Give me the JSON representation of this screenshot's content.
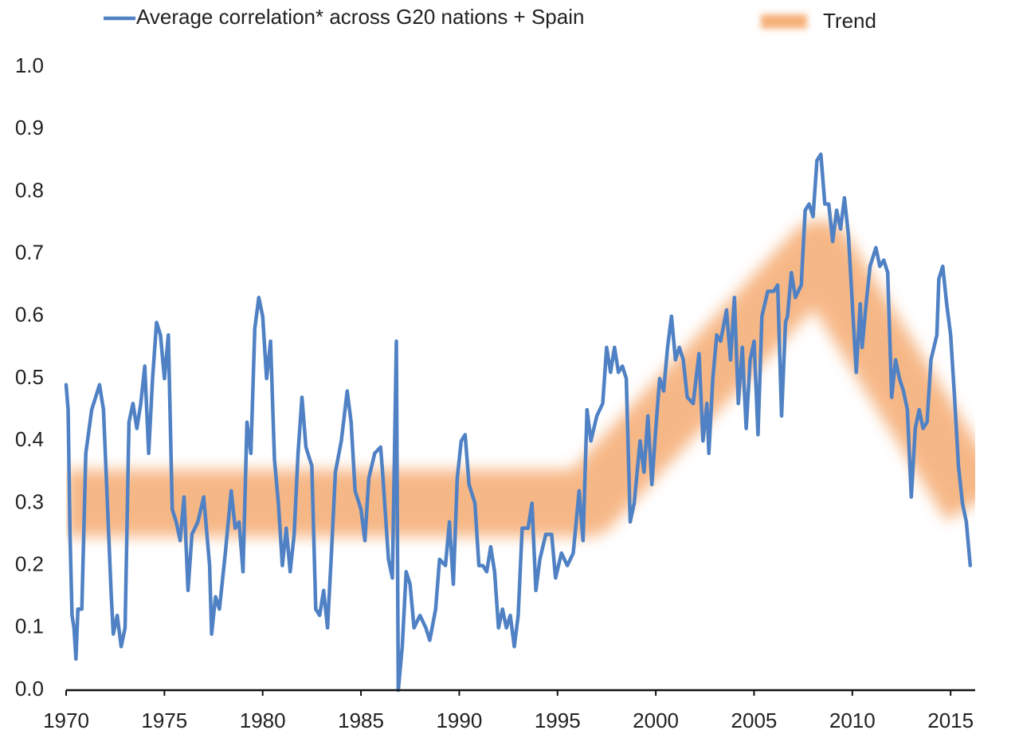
{
  "chart_data": {
    "type": "line",
    "grid": true,
    "legend": "top",
    "xlim": [
      1970,
      2016.25
    ],
    "xticks": [
      1970,
      1975,
      1980,
      1985,
      1990,
      1995,
      2000,
      2005,
      2010,
      2015
    ],
    "ylim": [
      0,
      1
    ],
    "yticks": [
      {
        "value": 0,
        "label": "0.0"
      },
      0.1,
      0.2,
      0.3,
      0.4,
      0.5,
      0.6,
      0.7,
      0.8,
      0.9,
      {
        "value": 1,
        "label": "1.0"
      }
    ],
    "series": [
      {
        "name": "Average correlation* across G20 nations + Spain",
        "color": "#4f81c4",
        "x": [
          1970.0,
          1970.1,
          1970.2,
          1970.3,
          1970.4,
          1970.5,
          1970.6,
          1970.8,
          1971.0,
          1971.3,
          1971.5,
          1971.7,
          1971.9,
          1972.1,
          1972.3,
          1972.4,
          1972.6,
          1972.8,
          1973.0,
          1973.2,
          1973.4,
          1973.6,
          1973.8,
          1974.0,
          1974.2,
          1974.4,
          1974.6,
          1974.8,
          1975.0,
          1975.2,
          1975.4,
          1975.6,
          1975.8,
          1976.0,
          1976.2,
          1976.4,
          1976.7,
          1977.0,
          1977.3,
          1977.4,
          1977.6,
          1977.8,
          1978.1,
          1978.4,
          1978.6,
          1978.8,
          1979.0,
          1979.2,
          1979.4,
          1979.6,
          1979.8,
          1980.0,
          1980.2,
          1980.4,
          1980.6,
          1980.8,
          1981.0,
          1981.2,
          1981.4,
          1981.6,
          1981.8,
          1982.0,
          1982.2,
          1982.3,
          1982.5,
          1982.7,
          1982.9,
          1983.1,
          1983.3,
          1983.5,
          1983.7,
          1984.0,
          1984.3,
          1984.5,
          1984.7,
          1985.0,
          1985.2,
          1985.4,
          1985.7,
          1986.0,
          1986.1,
          1986.4,
          1986.6,
          1986.8,
          1986.9,
          1987.1,
          1987.3,
          1987.5,
          1987.7,
          1988.0,
          1988.3,
          1988.5,
          1988.8,
          1989.0,
          1989.3,
          1989.5,
          1989.7,
          1989.9,
          1990.1,
          1990.3,
          1990.5,
          1990.8,
          1991.0,
          1991.2,
          1991.4,
          1991.6,
          1991.8,
          1992.0,
          1992.2,
          1992.4,
          1992.6,
          1992.8,
          1993.0,
          1993.2,
          1993.5,
          1993.7,
          1993.9,
          1994.1,
          1994.4,
          1994.7,
          1994.9,
          1995.2,
          1995.5,
          1995.8,
          1996.1,
          1996.3,
          1996.5,
          1996.7,
          1997.0,
          1997.3,
          1997.5,
          1997.7,
          1997.9,
          1998.1,
          1998.3,
          1998.5,
          1998.7,
          1998.9,
          1999.2,
          1999.4,
          1999.6,
          1999.8,
          2000.0,
          2000.2,
          2000.4,
          2000.6,
          2000.8,
          2001.0,
          2001.2,
          2001.4,
          2001.6,
          2001.9,
          2002.2,
          2002.4,
          2002.6,
          2002.7,
          2002.9,
          2003.1,
          2003.3,
          2003.6,
          2003.8,
          2004.0,
          2004.2,
          2004.4,
          2004.6,
          2004.8,
          2005.0,
          2005.2,
          2005.4,
          2005.7,
          2006.0,
          2006.2,
          2006.4,
          2006.6,
          2006.7,
          2006.9,
          2007.1,
          2007.4,
          2007.6,
          2007.8,
          2008.0,
          2008.2,
          2008.4,
          2008.6,
          2008.8,
          2009.0,
          2009.2,
          2009.4,
          2009.6,
          2009.8,
          2010.0,
          2010.2,
          2010.4,
          2010.5,
          2010.7,
          2010.9,
          2011.2,
          2011.4,
          2011.6,
          2011.8,
          2012.0,
          2012.2,
          2012.4,
          2012.6,
          2012.8,
          2013.0,
          2013.2,
          2013.4,
          2013.6,
          2013.8,
          2014.0,
          2014.3,
          2014.4,
          2014.6,
          2014.8,
          2015.0,
          2015.2,
          2015.4,
          2015.6,
          2015.8,
          2016.0
        ],
        "values": [
          0.49,
          0.45,
          0.25,
          0.12,
          0.1,
          0.05,
          0.13,
          0.13,
          0.38,
          0.45,
          0.47,
          0.49,
          0.45,
          0.3,
          0.15,
          0.09,
          0.12,
          0.07,
          0.1,
          0.43,
          0.46,
          0.42,
          0.46,
          0.52,
          0.38,
          0.5,
          0.59,
          0.57,
          0.5,
          0.57,
          0.29,
          0.27,
          0.24,
          0.31,
          0.16,
          0.25,
          0.27,
          0.31,
          0.2,
          0.09,
          0.15,
          0.13,
          0.22,
          0.32,
          0.26,
          0.27,
          0.19,
          0.43,
          0.38,
          0.58,
          0.63,
          0.6,
          0.5,
          0.56,
          0.37,
          0.3,
          0.2,
          0.26,
          0.19,
          0.25,
          0.38,
          0.47,
          0.39,
          0.38,
          0.36,
          0.13,
          0.12,
          0.16,
          0.1,
          0.22,
          0.35,
          0.4,
          0.48,
          0.43,
          0.32,
          0.29,
          0.24,
          0.34,
          0.38,
          0.39,
          0.35,
          0.21,
          0.18,
          0.56,
          0.0,
          0.07,
          0.19,
          0.17,
          0.1,
          0.12,
          0.1,
          0.08,
          0.13,
          0.21,
          0.2,
          0.27,
          0.17,
          0.34,
          0.4,
          0.41,
          0.33,
          0.3,
          0.2,
          0.2,
          0.19,
          0.23,
          0.19,
          0.1,
          0.13,
          0.1,
          0.12,
          0.07,
          0.12,
          0.26,
          0.26,
          0.3,
          0.16,
          0.21,
          0.25,
          0.25,
          0.18,
          0.22,
          0.2,
          0.22,
          0.32,
          0.24,
          0.45,
          0.4,
          0.44,
          0.46,
          0.55,
          0.51,
          0.55,
          0.51,
          0.52,
          0.5,
          0.27,
          0.3,
          0.4,
          0.35,
          0.44,
          0.33,
          0.42,
          0.5,
          0.48,
          0.55,
          0.6,
          0.53,
          0.55,
          0.53,
          0.47,
          0.46,
          0.54,
          0.4,
          0.46,
          0.38,
          0.5,
          0.57,
          0.56,
          0.61,
          0.53,
          0.63,
          0.46,
          0.55,
          0.42,
          0.53,
          0.56,
          0.41,
          0.6,
          0.64,
          0.64,
          0.65,
          0.44,
          0.59,
          0.6,
          0.67,
          0.63,
          0.65,
          0.77,
          0.78,
          0.76,
          0.85,
          0.86,
          0.78,
          0.78,
          0.72,
          0.77,
          0.74,
          0.79,
          0.73,
          0.62,
          0.51,
          0.62,
          0.55,
          0.62,
          0.68,
          0.71,
          0.68,
          0.69,
          0.67,
          0.47,
          0.53,
          0.5,
          0.48,
          0.45,
          0.31,
          0.42,
          0.45,
          0.42,
          0.43,
          0.53,
          0.57,
          0.66,
          0.68,
          0.62,
          0.57,
          0.47,
          0.36,
          0.3,
          0.27,
          0.2
        ]
      },
      {
        "name": "Trend",
        "color": "#f6b07a",
        "x": [
          1970,
          1996.5,
          2008.3,
          2016.25
        ],
        "values": [
          0.3,
          0.3,
          0.7,
          0.3
        ]
      }
    ]
  }
}
